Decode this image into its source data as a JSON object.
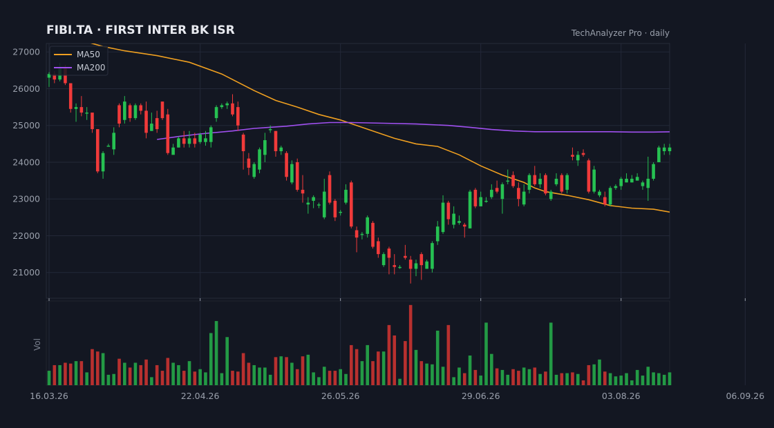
{
  "header": {
    "title": "FIBI.TA  ·  FIRST INTER BK ISR",
    "watermark": "TechAnalyzer Pro · daily"
  },
  "colors": {
    "background": "#131722",
    "grid": "#232838",
    "up": "#26c152",
    "down": "#f03a3a",
    "vol_up": "#239a45",
    "vol_down": "#b8302f",
    "ma50": "#f0a020",
    "ma200": "#a050f0"
  },
  "chart_data": {
    "type": "candlestick",
    "start_date": "16.03.26",
    "y_ticks": [
      21000,
      22000,
      23000,
      24000,
      25000,
      26000,
      27000
    ],
    "ylim": [
      20300,
      27230
    ],
    "x_ticks": [
      {
        "label": "16.03.26",
        "index": 0
      },
      {
        "label": "22.04.26",
        "index": 28
      },
      {
        "label": "26.05.26",
        "index": 54
      },
      {
        "label": "29.06.26",
        "index": 80
      },
      {
        "label": "03.08.26",
        "index": 106
      },
      {
        "label": "06.09.26",
        "index": 129
      }
    ],
    "legend": [
      {
        "name": "MA50",
        "key": "ma50"
      },
      {
        "name": "MA200",
        "key": "ma200"
      }
    ],
    "volume_label": "Vol",
    "volume_max": 105,
    "candles": [
      [
        26300,
        26400,
        26450,
        26050,
        18
      ],
      [
        26400,
        26250,
        26480,
        26150,
        25
      ],
      [
        26250,
        26550,
        26700,
        26200,
        25
      ],
      [
        26550,
        26150,
        26650,
        26100,
        28
      ],
      [
        26150,
        25450,
        26100,
        25350,
        27
      ],
      [
        25450,
        25500,
        25600,
        25100,
        30
      ],
      [
        25500,
        25350,
        25800,
        25250,
        30
      ],
      [
        25350,
        25350,
        25500,
        25150,
        16
      ],
      [
        25350,
        24900,
        25300,
        24800,
        45
      ],
      [
        24900,
        23750,
        24700,
        23700,
        42
      ],
      [
        23750,
        24250,
        24300,
        23550,
        40
      ],
      [
        24450,
        24450,
        24500,
        24450,
        13
      ],
      [
        24350,
        24800,
        24950,
        24200,
        14
      ],
      [
        25550,
        25050,
        25600,
        24950,
        33
      ],
      [
        25150,
        25650,
        25800,
        25050,
        28
      ],
      [
        25550,
        25200,
        25600,
        25100,
        22
      ],
      [
        25200,
        25550,
        25600,
        25150,
        28
      ],
      [
        25550,
        25400,
        25600,
        25300,
        25
      ],
      [
        25400,
        24800,
        25650,
        24650,
        32
      ],
      [
        24850,
        25050,
        25350,
        24850,
        10
      ],
      [
        25200,
        24900,
        25400,
        24800,
        25
      ],
      [
        25650,
        25200,
        25650,
        25150,
        18
      ],
      [
        25300,
        24250,
        25450,
        24200,
        34
      ],
      [
        24200,
        24400,
        24500,
        24300,
        28
      ],
      [
        24400,
        24650,
        24700,
        24400,
        25
      ],
      [
        24650,
        24500,
        24850,
        24400,
        18
      ],
      [
        24500,
        24650,
        24850,
        24400,
        30
      ],
      [
        24650,
        24500,
        24800,
        24400,
        17
      ],
      [
        24550,
        24750,
        24800,
        24500,
        20
      ],
      [
        24550,
        24650,
        24850,
        24450,
        16
      ],
      [
        24550,
        24950,
        25000,
        24400,
        65
      ],
      [
        25200,
        25500,
        25550,
        25100,
        80
      ],
      [
        25500,
        25550,
        25600,
        25450,
        15
      ],
      [
        25550,
        25600,
        25650,
        25450,
        60
      ],
      [
        25600,
        25300,
        25850,
        25250,
        18
      ],
      [
        25500,
        25000,
        25650,
        24850,
        17
      ],
      [
        24750,
        24300,
        24800,
        23800,
        40
      ],
      [
        24100,
        23850,
        24250,
        23650,
        28
      ],
      [
        23600,
        23950,
        24000,
        23550,
        25
      ],
      [
        23800,
        24350,
        24400,
        23700,
        22
      ],
      [
        24200,
        24600,
        24800,
        24000,
        22
      ],
      [
        24900,
        24900,
        25000,
        24800,
        13
      ],
      [
        24850,
        24300,
        24850,
        24150,
        35
      ],
      [
        24300,
        24400,
        24450,
        24200,
        36
      ],
      [
        24250,
        23600,
        24300,
        23500,
        35
      ],
      [
        23450,
        23950,
        24050,
        23400,
        28
      ],
      [
        24000,
        23250,
        24100,
        23200,
        20
      ],
      [
        23250,
        23150,
        23650,
        22900,
        36
      ],
      [
        22850,
        22900,
        23050,
        22600,
        38
      ],
      [
        22950,
        23050,
        23100,
        22750,
        16
      ],
      [
        22850,
        22850,
        22900,
        22750,
        10
      ],
      [
        22500,
        23200,
        23550,
        22450,
        23
      ],
      [
        23650,
        22900,
        23750,
        22850,
        18
      ],
      [
        22950,
        22500,
        23000,
        22400,
        18
      ],
      [
        22650,
        22650,
        22700,
        22550,
        20
      ],
      [
        22900,
        23250,
        23400,
        22850,
        14
      ],
      [
        23450,
        22250,
        23500,
        22200,
        50
      ],
      [
        22150,
        21950,
        22250,
        21550,
        45
      ],
      [
        22050,
        22050,
        22100,
        21900,
        30
      ],
      [
        22050,
        22500,
        22550,
        21950,
        50
      ],
      [
        22350,
        21700,
        22400,
        21650,
        30
      ],
      [
        21850,
        21500,
        21950,
        21400,
        42
      ],
      [
        21200,
        21500,
        21550,
        21150,
        42
      ],
      [
        21650,
        21400,
        21700,
        20950,
        75
      ],
      [
        21200,
        21150,
        21500,
        20950,
        62
      ],
      [
        21150,
        21150,
        21200,
        21100,
        8
      ],
      [
        21450,
        21400,
        21750,
        21350,
        55
      ],
      [
        21350,
        21100,
        21450,
        20700,
        100
      ],
      [
        21100,
        21250,
        21350,
        20900,
        44
      ],
      [
        21500,
        21200,
        21550,
        20800,
        30
      ],
      [
        21100,
        21300,
        21350,
        21100,
        27
      ],
      [
        21100,
        21800,
        21850,
        21000,
        26
      ],
      [
        21850,
        22250,
        22400,
        21750,
        68
      ],
      [
        22100,
        22900,
        23100,
        22050,
        23
      ],
      [
        22900,
        22450,
        22950,
        22300,
        75
      ],
      [
        22300,
        22600,
        22800,
        22200,
        10
      ],
      [
        22350,
        22400,
        22550,
        22300,
        22
      ],
      [
        22300,
        22250,
        22350,
        21950,
        15
      ],
      [
        22200,
        23200,
        23250,
        22200,
        37
      ],
      [
        23250,
        22800,
        23300,
        22750,
        19
      ],
      [
        22800,
        23050,
        23200,
        22800,
        12
      ],
      [
        22950,
        22950,
        23050,
        22900,
        78
      ],
      [
        23050,
        23250,
        23400,
        23000,
        39
      ],
      [
        23300,
        23200,
        23500,
        23150,
        21
      ],
      [
        23000,
        23400,
        23450,
        22600,
        19
      ],
      [
        23500,
        23500,
        23800,
        23400,
        13
      ],
      [
        23650,
        23350,
        23750,
        23300,
        20
      ],
      [
        23300,
        23000,
        23450,
        22800,
        18
      ],
      [
        22850,
        23200,
        23400,
        22800,
        22
      ],
      [
        23250,
        23650,
        23700,
        23150,
        20
      ],
      [
        23650,
        23400,
        23900,
        23350,
        22
      ],
      [
        23400,
        23550,
        23700,
        23300,
        14
      ],
      [
        23650,
        23150,
        23700,
        23100,
        17
      ],
      [
        23000,
        23200,
        23250,
        22950,
        78
      ],
      [
        23400,
        23550,
        23700,
        23350,
        13
      ],
      [
        23650,
        23200,
        23700,
        23150,
        15
      ],
      [
        23250,
        23650,
        23700,
        23150,
        15
      ],
      [
        24200,
        24150,
        24400,
        24050,
        16
      ],
      [
        24050,
        24200,
        24300,
        23900,
        14
      ],
      [
        24250,
        24200,
        24350,
        24150,
        6
      ],
      [
        24050,
        23200,
        24100,
        23150,
        25
      ],
      [
        23200,
        23800,
        23900,
        23150,
        26
      ],
      [
        23100,
        23200,
        23250,
        23050,
        32
      ],
      [
        23050,
        22850,
        23200,
        22800,
        17
      ],
      [
        22850,
        23300,
        23350,
        22800,
        15
      ],
      [
        23300,
        23350,
        23400,
        23250,
        11
      ],
      [
        23350,
        23550,
        23600,
        23250,
        12
      ],
      [
        23450,
        23550,
        23700,
        23450,
        15
      ],
      [
        23450,
        23550,
        23650,
        23450,
        6
      ],
      [
        23500,
        23600,
        23700,
        23500,
        19
      ],
      [
        23350,
        23450,
        23500,
        23250,
        12
      ],
      [
        23300,
        23550,
        24150,
        22950,
        23
      ],
      [
        23550,
        23950,
        24000,
        23500,
        16
      ],
      [
        24000,
        24400,
        24450,
        24000,
        15
      ],
      [
        24300,
        24400,
        24500,
        24200,
        13
      ],
      [
        24300,
        24400,
        24500,
        24200,
        16
      ]
    ],
    "ma50": [
      [
        0,
        27620
      ],
      [
        8,
        27230
      ],
      [
        10,
        27150
      ],
      [
        14,
        27030
      ],
      [
        20,
        26900
      ],
      [
        26,
        26720
      ],
      [
        32,
        26400
      ],
      [
        38,
        25950
      ],
      [
        42,
        25680
      ],
      [
        46,
        25500
      ],
      [
        50,
        25300
      ],
      [
        54,
        25150
      ],
      [
        56,
        25050
      ],
      [
        60,
        24850
      ],
      [
        64,
        24650
      ],
      [
        68,
        24500
      ],
      [
        72,
        24430
      ],
      [
        76,
        24200
      ],
      [
        80,
        23900
      ],
      [
        84,
        23650
      ],
      [
        88,
        23450
      ],
      [
        90,
        23300
      ],
      [
        92,
        23200
      ],
      [
        96,
        23100
      ],
      [
        100,
        22980
      ],
      [
        104,
        22820
      ],
      [
        108,
        22750
      ],
      [
        112,
        22720
      ],
      [
        116,
        22620
      ],
      [
        118,
        22580
      ],
      [
        120,
        22560
      ],
      [
        124,
        22600
      ],
      [
        126,
        22640
      ],
      [
        128,
        22660
      ],
      [
        130,
        22680
      ],
      [
        134,
        22720
      ],
      [
        138,
        22790
      ],
      [
        142,
        22880
      ],
      [
        146,
        22980
      ],
      [
        148,
        23100
      ]
    ],
    "ma200": [
      [
        20,
        24620
      ],
      [
        24,
        24700
      ],
      [
        28,
        24770
      ],
      [
        34,
        24850
      ],
      [
        38,
        24920
      ],
      [
        44,
        24980
      ],
      [
        48,
        25040
      ],
      [
        52,
        25080
      ],
      [
        56,
        25080
      ],
      [
        62,
        25060
      ],
      [
        68,
        25040
      ],
      [
        74,
        25000
      ],
      [
        78,
        24950
      ],
      [
        82,
        24890
      ],
      [
        86,
        24850
      ],
      [
        90,
        24830
      ],
      [
        96,
        24830
      ],
      [
        100,
        24830
      ],
      [
        104,
        24830
      ],
      [
        108,
        24820
      ],
      [
        112,
        24820
      ],
      [
        116,
        24830
      ],
      [
        120,
        24840
      ],
      [
        124,
        24840
      ],
      [
        130,
        24850
      ],
      [
        136,
        24860
      ],
      [
        140,
        24860
      ],
      [
        144,
        24860
      ],
      [
        148,
        24860
      ]
    ]
  }
}
